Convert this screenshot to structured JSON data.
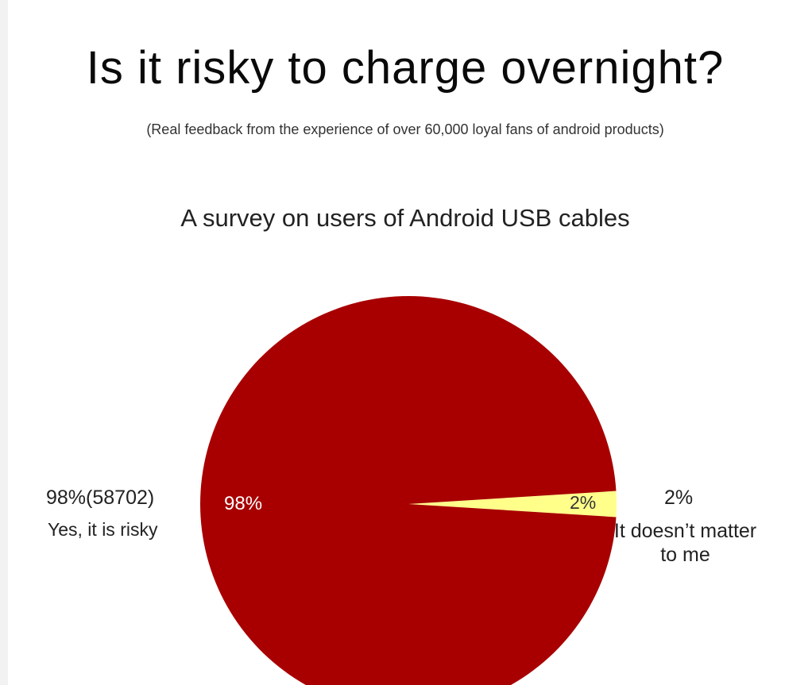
{
  "header": {
    "title": "Is it risky to charge overnight?",
    "subtitle": "(Real feedback from the experience of over 60,000 loyal fans of android products)"
  },
  "chart_data": {
    "type": "pie",
    "title": "A survey on users of Android USB cables",
    "slices": [
      {
        "label": "Yes, it is risky",
        "percent": 98,
        "count": 58702,
        "display": "98%",
        "outer_label": "98%(58702)",
        "color": "#a80000"
      },
      {
        "label": "It doesn’t matter to me",
        "percent": 2,
        "display": "2%",
        "outer_label": "2%",
        "color": "#ffff8a"
      }
    ]
  }
}
